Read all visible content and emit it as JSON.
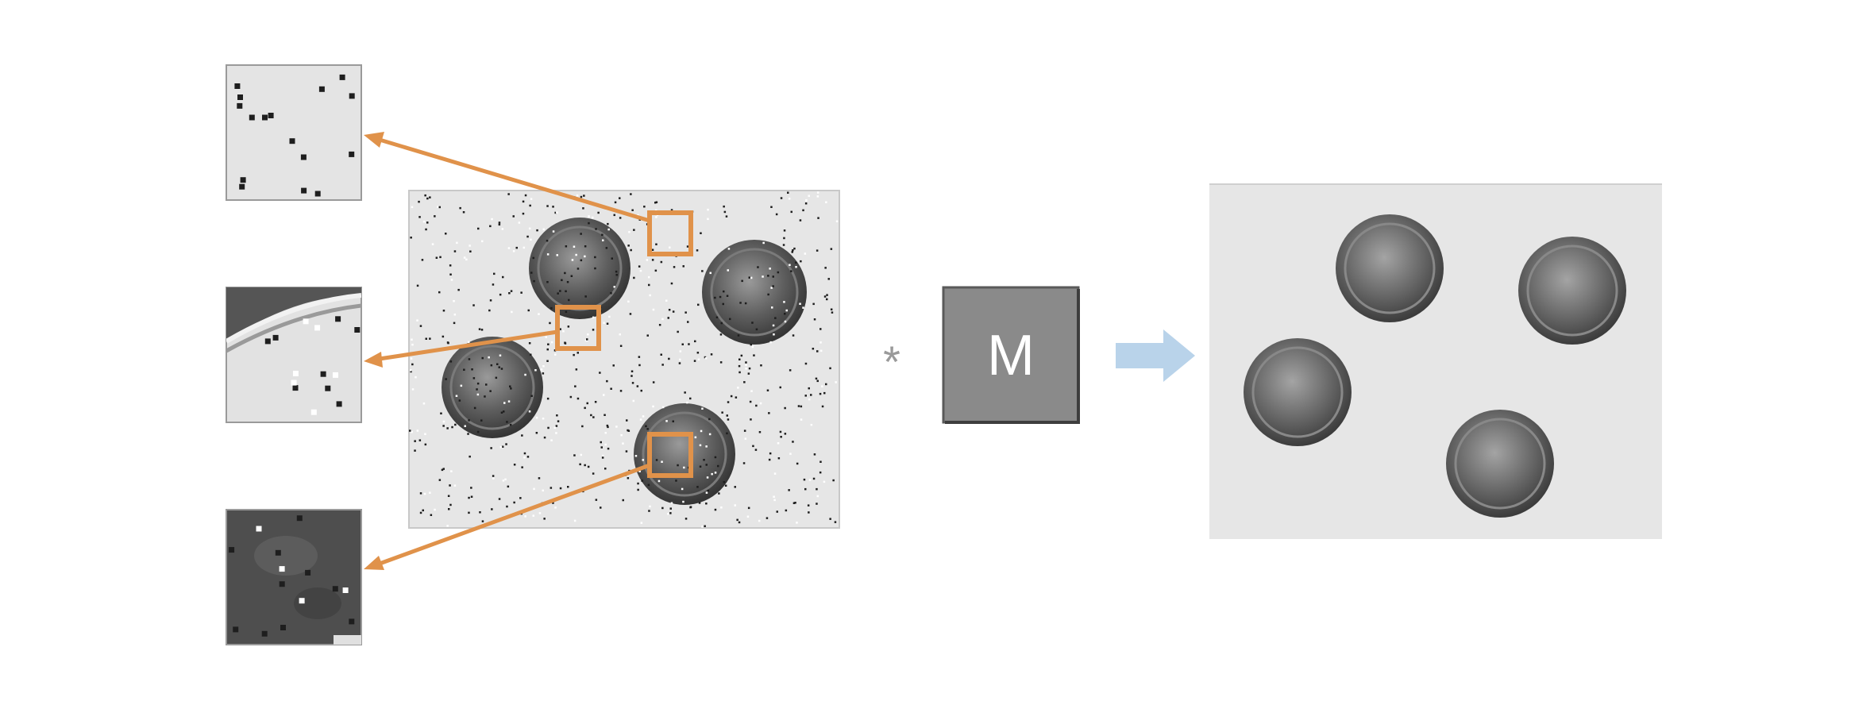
{
  "filter_box": {
    "label": "M"
  },
  "operator": {
    "symbol": "*"
  },
  "colors": {
    "highlight": "#E0924A",
    "arrow_result": "#B9D3EA",
    "filter_fill": "#8A8A8A",
    "noisy_bg": "#E4E4E4",
    "clean_bg": "#E6E6E6",
    "coin": "#5B5B5B"
  },
  "icons": {
    "convolution": "asterisk-icon",
    "result_arrow": "right-arrow-icon"
  }
}
